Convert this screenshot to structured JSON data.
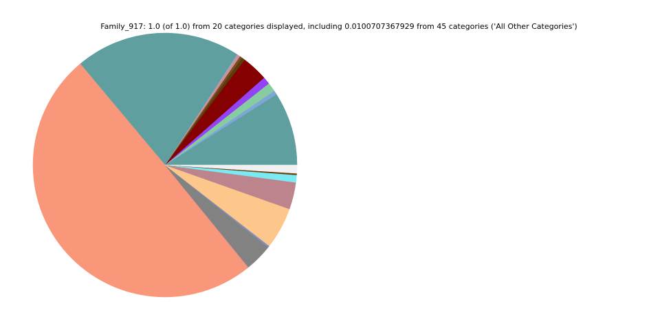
{
  "chart_data": {
    "type": "pie",
    "title": "Family_917: 1.0 (of 1.0) from 20 categories displayed, including 0.0100707367929 from 45 categories ('All Other Categories')",
    "categories": [
      null,
      null,
      null,
      null,
      null,
      null,
      null,
      null,
      null,
      null,
      null,
      null,
      null,
      null,
      null,
      null,
      null,
      null,
      null,
      null
    ],
    "values": [
      0.09,
      0.005,
      0.011,
      0.009,
      0.032,
      0.004,
      0.003,
      0.001,
      0.002,
      0.001,
      0.203,
      0.497,
      0.001,
      0.034,
      0.002,
      0.051,
      0.033,
      0.009,
      0.002,
      0.0100707367929
    ],
    "colors": [
      "#5f9f9f",
      "#7ea6d8",
      "#87cc9f",
      "#9442f5",
      "#850000",
      "#5b3d0a",
      "#7a4a2a",
      "#c8a070",
      "#d08aa0",
      "#b0a0d0",
      "#5f9f9f",
      "#f8977a",
      "#e89090",
      "#828282",
      "#8090c0",
      "#fdc68a",
      "#bc848c",
      "#7ae9f2",
      "#6b4012",
      "#f0f0f0"
    ],
    "start_angle": 0,
    "counterclockwise": true
  }
}
